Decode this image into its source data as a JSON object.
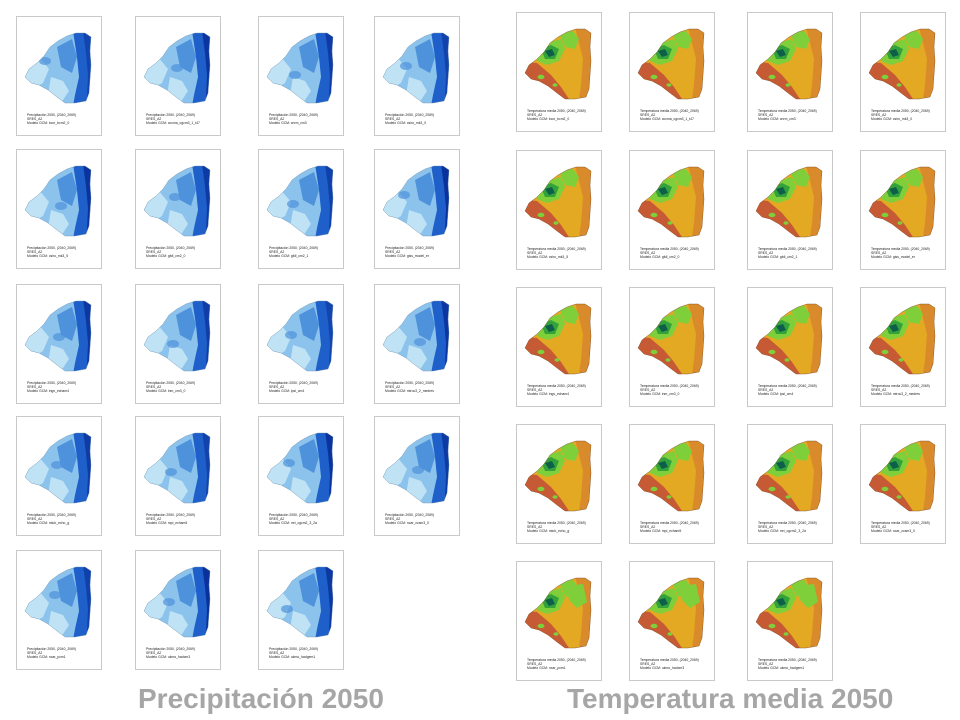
{
  "precipitation": {
    "title": "Precipitación 2050",
    "palette": [
      "#bfe3f5",
      "#8cc3ec",
      "#4f92dc",
      "#1e5fc9",
      "#0a2f9a"
    ],
    "maps": [
      {
        "l1": "Precipitación 2050, (2040_2069)",
        "l2": "SRES_A2",
        "l3": "Modelo GCM: bccr_bcm2_0"
      },
      {
        "l1": "Precipitación 2050, (2040_2069)",
        "l2": "SRES_A2",
        "l3": "Modelo GCM: cccma_cgcm3_1_t47"
      },
      {
        "l1": "Precipitación 2050, (2040_2069)",
        "l2": "SRES_A2",
        "l3": "Modelo GCM: cnrm_cm3"
      },
      {
        "l1": "Precipitación 2050, (2040_2069)",
        "l2": "SRES_A2",
        "l3": "Modelo GCM: csiro_mk3_0"
      },
      {
        "l1": "Precipitación 2050, (2040_2069)",
        "l2": "SRES_A2",
        "l3": "Modelo GCM: csiro_mk3_5"
      },
      {
        "l1": "Precipitación 2050, (2040_2069)",
        "l2": "SRES_A2",
        "l3": "Modelo GCM: gfdl_cm2_0"
      },
      {
        "l1": "Precipitación 2050, (2040_2069)",
        "l2": "SRES_A2",
        "l3": "Modelo GCM: gfdl_cm2_1"
      },
      {
        "l1": "Precipitación 2050, (2040_2069)",
        "l2": "SRES_A2",
        "l3": "Modelo GCM: giss_model_er"
      },
      {
        "l1": "Precipitación 2050, (2040_2069)",
        "l2": "SRES_A2",
        "l3": "Modelo GCM: ingv_echam4"
      },
      {
        "l1": "Precipitación 2050, (2040_2069)",
        "l2": "SRES_A2",
        "l3": "Modelo GCM: inm_cm3_0"
      },
      {
        "l1": "Precipitación 2050, (2040_2069)",
        "l2": "SRES_A2",
        "l3": "Modelo GCM: ipsl_cm4"
      },
      {
        "l1": "Precipitación 2050, (2040_2069)",
        "l2": "SRES_A2",
        "l3": "Modelo GCM: miroc3_2_medres"
      },
      {
        "l1": "Precipitación 2050, (2040_2069)",
        "l2": "SRES_A2",
        "l3": "Modelo GCM: miub_echo_g"
      },
      {
        "l1": "Precipitación 2050, (2040_2069)",
        "l2": "SRES_A2",
        "l3": "Modelo GCM: mpi_echam5"
      },
      {
        "l1": "Precipitación 2050, (2040_2069)",
        "l2": "SRES_A2",
        "l3": "Modelo GCM: mri_cgcm2_3_2a"
      },
      {
        "l1": "Precipitación 2050, (2040_2069)",
        "l2": "SRES_A2",
        "l3": "Modelo GCM: ncar_ccsm3_0"
      },
      {
        "l1": "Precipitación 2050, (2040_2069)",
        "l2": "SRES_A2",
        "l3": "Modelo GCM: ncar_pcm1"
      },
      {
        "l1": "Precipitación 2050, (2040_2069)",
        "l2": "SRES_A2",
        "l3": "Modelo GCM: ukmo_hadcm3"
      },
      {
        "l1": "Precipitación 2050, (2040_2069)",
        "l2": "SRES_A2",
        "l3": "Modelo GCM: ukmo_hadgem1"
      }
    ]
  },
  "temperature": {
    "title": "Temperatura media 2050",
    "palette": [
      "#c65a34",
      "#d98a2a",
      "#e3a922",
      "#7fcf3a",
      "#34a23a",
      "#0e5f4a"
    ],
    "maps": [
      {
        "l1": "Temperatura media 2050, (2040_2069)",
        "l2": "SRES_A2",
        "l3": "Modelo GCM: bccr_bcm2_0"
      },
      {
        "l1": "Temperatura media 2050, (2040_2069)",
        "l2": "SRES_A2",
        "l3": "Modelo GCM: cccma_cgcm3_1_t47"
      },
      {
        "l1": "Temperatura media 2050, (2040_2069)",
        "l2": "SRES_A2",
        "l3": "Modelo GCM: cnrm_cm3"
      },
      {
        "l1": "Temperatura media 2050, (2040_2069)",
        "l2": "SRES_A2",
        "l3": "Modelo GCM: csiro_mk3_0"
      },
      {
        "l1": "Temperatura media 2050, (2040_2069)",
        "l2": "SRES_A2",
        "l3": "Modelo GCM: csiro_mk3_5"
      },
      {
        "l1": "Temperatura media 2050, (2040_2069)",
        "l2": "SRES_A2",
        "l3": "Modelo GCM: gfdl_cm2_0"
      },
      {
        "l1": "Temperatura media 2050, (2040_2069)",
        "l2": "SRES_A2",
        "l3": "Modelo GCM: gfdl_cm2_1"
      },
      {
        "l1": "Temperatura media 2050, (2040_2069)",
        "l2": "SRES_A2",
        "l3": "Modelo GCM: giss_model_er"
      },
      {
        "l1": "Temperatura media 2050, (2040_2069)",
        "l2": "SRES_A2",
        "l3": "Modelo GCM: ingv_echam4"
      },
      {
        "l1": "Temperatura media 2050, (2040_2069)",
        "l2": "SRES_A2",
        "l3": "Modelo GCM: inm_cm3_0"
      },
      {
        "l1": "Temperatura media 2050, (2040_2069)",
        "l2": "SRES_A2",
        "l3": "Modelo GCM: ipsl_cm4"
      },
      {
        "l1": "Temperatura media 2050, (2040_2069)",
        "l2": "SRES_A2",
        "l3": "Modelo GCM: miroc3_2_medres"
      },
      {
        "l1": "Temperatura media 2050, (2040_2069)",
        "l2": "SRES_A2",
        "l3": "Modelo GCM: miub_echo_g"
      },
      {
        "l1": "Temperatura media 2050, (2040_2069)",
        "l2": "SRES_A2",
        "l3": "Modelo GCM: mpi_echam5"
      },
      {
        "l1": "Temperatura media 2050, (2040_2069)",
        "l2": "SRES_A2",
        "l3": "Modelo GCM: mri_cgcm2_3_2a"
      },
      {
        "l1": "Temperatura media 2050, (2040_2069)",
        "l2": "SRES_A2",
        "l3": "Modelo GCM: ncar_ccsm3_0"
      },
      {
        "l1": "Temperatura media 2050, (2040_2069)",
        "l2": "SRES_A2",
        "l3": "Modelo GCM: ncar_pcm1"
      },
      {
        "l1": "Temperatura media 2050, (2040_2069)",
        "l2": "SRES_A2",
        "l3": "Modelo GCM: ukmo_hadcm3"
      },
      {
        "l1": "Temperatura media 2050, (2040_2069)",
        "l2": "SRES_A2",
        "l3": "Modelo GCM: ukmo_hadgem1"
      }
    ]
  }
}
